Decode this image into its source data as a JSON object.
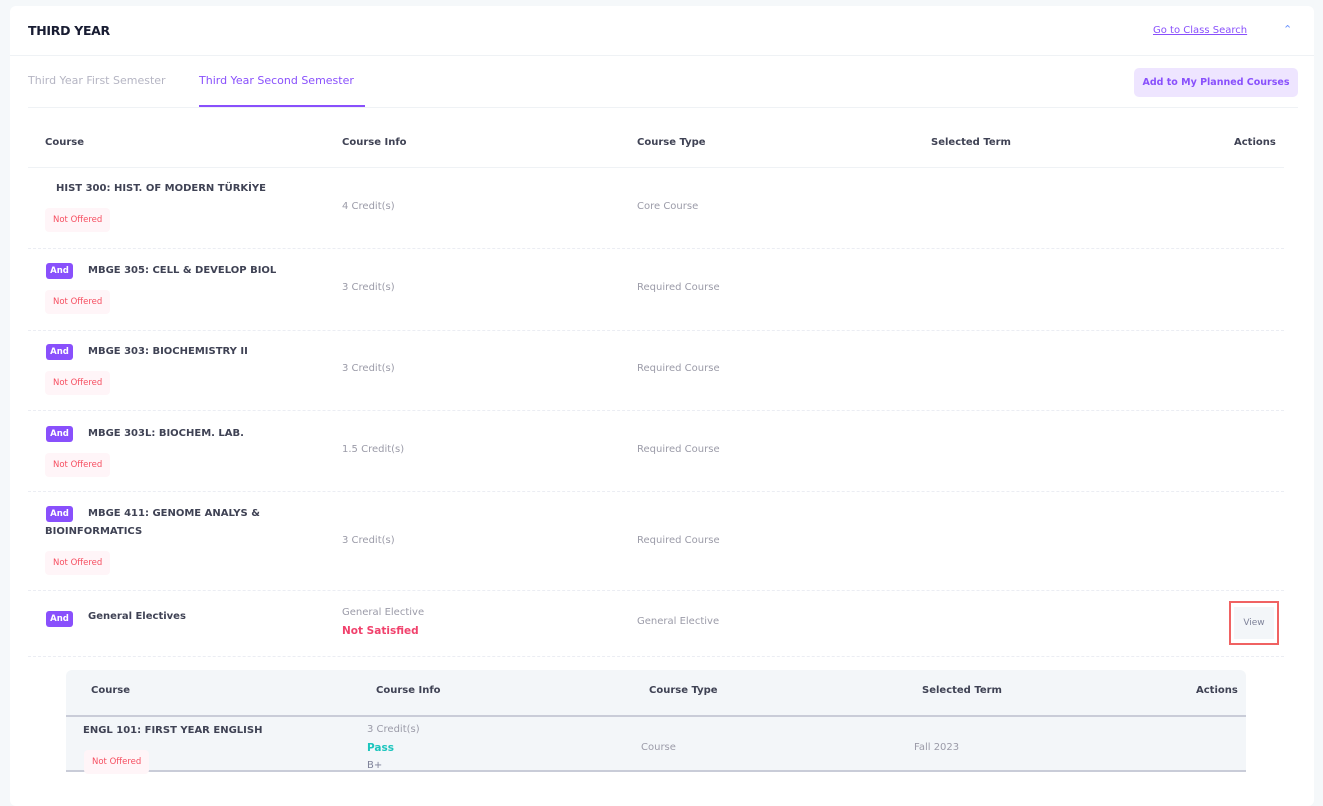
{
  "section": {
    "title": "THIRD YEAR",
    "class_search_link": "Go to Class Search",
    "collapse_icon": "chevron-up-icon"
  },
  "tabs": [
    {
      "label": "Third Year First Semester",
      "active": false
    },
    {
      "label": "Third Year Second Semester",
      "active": true
    }
  ],
  "add_button": "Add to My Planned Courses",
  "columns": [
    "Course",
    "Course Info",
    "Course Type",
    "Selected Term",
    "Actions"
  ],
  "rows": [
    {
      "badge": "",
      "course": "HIST 300: HIST. OF MODERN TÜRKİYE",
      "status": "Not Offered",
      "info": "4 Credit(s)",
      "type": "Core Course"
    },
    {
      "badge": "And",
      "course": "MBGE 305: CELL & DEVELOP BIOL",
      "status": "Not Offered",
      "info": "3 Credit(s)",
      "type": "Required Course"
    },
    {
      "badge": "And",
      "course": "MBGE 303: BIOCHEMISTRY II",
      "status": "Not Offered",
      "info": "3 Credit(s)",
      "type": "Required Course"
    },
    {
      "badge": "And",
      "course": "MBGE 303L: BIOCHEM. LAB.",
      "status": "Not Offered",
      "info": "1.5 Credit(s)",
      "type": "Required Course"
    },
    {
      "badge": "And",
      "course": "MBGE 411: GENOME ANALYS &",
      "course2": "BIOINFORMATICS",
      "status": "Not Offered",
      "info": "3 Credit(s)",
      "type": "Required Course"
    },
    {
      "badge": "And",
      "course": "General Electives",
      "info": "General Elective",
      "info_status": "Not Satisfied",
      "type": "General Elective",
      "action": "View"
    }
  ],
  "nested": {
    "columns": [
      "Course",
      "Course Info",
      "Course Type",
      "Selected Term",
      "Actions"
    ],
    "rows": [
      {
        "course": "ENGL 101: FIRST YEAR ENGLISH",
        "status": "Not Offered",
        "info": "3 Credit(s)",
        "result": "Pass",
        "grade": "B+",
        "type": "Course",
        "term": "Fall 2023"
      }
    ]
  }
}
